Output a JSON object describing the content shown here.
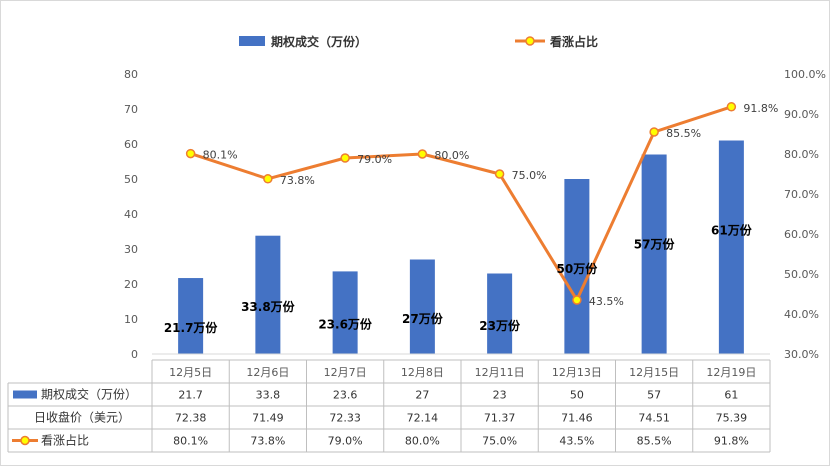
{
  "chart_data": {
    "type": "bar+line",
    "categories": [
      "12月5日",
      "12月6日",
      "12月7日",
      "12月8日",
      "12月11日",
      "12月13日",
      "12月15日",
      "12月19日"
    ],
    "series": [
      {
        "name": "期权成交（万份）",
        "kind": "bar",
        "axis": "left",
        "color": "#4472c4",
        "values": [
          21.7,
          33.8,
          23.6,
          27,
          23,
          50,
          57,
          61
        ],
        "labels": [
          "21.7万份",
          "33.8万份",
          "23.6万份",
          "27万份",
          "23万份",
          "50万份",
          "57万份",
          "61万份"
        ]
      },
      {
        "name": "看涨占比",
        "kind": "line",
        "axis": "right",
        "color": "#ed7d31",
        "marker_color": "#ffff00",
        "values": [
          80.1,
          73.8,
          79.0,
          80.0,
          75.0,
          43.5,
          85.5,
          91.8
        ],
        "labels": [
          "80.1%",
          "73.8%",
          "79.0%",
          "80.0%",
          "75.0%",
          "43.5%",
          "85.5%",
          "91.8%"
        ]
      }
    ],
    "left_axis": {
      "min": 0,
      "max": 80,
      "step": 10,
      "ticks": [
        "0",
        "10",
        "20",
        "30",
        "40",
        "50",
        "60",
        "70",
        "80"
      ]
    },
    "right_axis": {
      "min": 30,
      "max": 100,
      "step": 10,
      "ticks": [
        "30.0%",
        "40.0%",
        "50.0%",
        "60.0%",
        "70.0%",
        "80.0%",
        "90.0%",
        "100.0%"
      ]
    },
    "legend_position": "top",
    "grid": false,
    "table": {
      "rows": [
        {
          "label": "期权成交（万份）",
          "marker": "bar",
          "values": [
            "21.7",
            "33.8",
            "23.6",
            "27",
            "23",
            "50",
            "57",
            "61"
          ]
        },
        {
          "label": "日收盘价（美元）",
          "marker": "none",
          "values": [
            "72.38",
            "71.49",
            "72.33",
            "72.14",
            "71.37",
            "71.46",
            "74.51",
            "75.39"
          ]
        },
        {
          "label": "看涨占比",
          "marker": "line",
          "values": [
            "80.1%",
            "73.8%",
            "79.0%",
            "80.0%",
            "75.0%",
            "43.5%",
            "85.5%",
            "91.8%"
          ]
        }
      ]
    }
  }
}
